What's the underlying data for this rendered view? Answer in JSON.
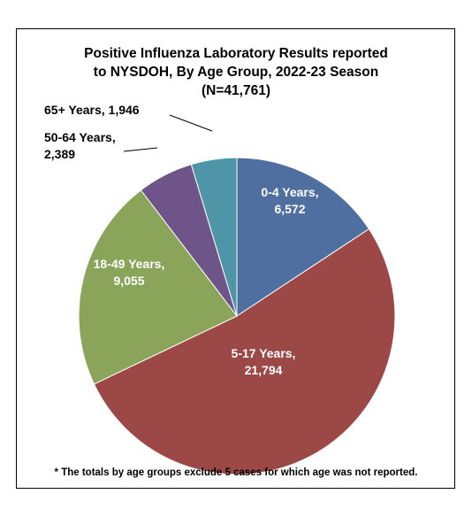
{
  "chart_data": {
    "type": "pie",
    "title_lines": [
      "Positive Influenza Laboratory Results reported",
      "to NYSDOH, By Age Group, 2022-23 Season",
      "(N=41,761)"
    ],
    "slices": [
      {
        "category": "0-4 Years",
        "value": 6572,
        "value_label": "6,572",
        "color": "#4f6fa0",
        "label_color": "#ffffff"
      },
      {
        "category": "5-17 Years",
        "value": 21794,
        "value_label": "21,794",
        "color": "#9b4846",
        "label_color": "#ffffff"
      },
      {
        "category": "18-49 Years",
        "value": 9055,
        "value_label": "9,055",
        "color": "#8aa55a",
        "label_color": "#ffffff"
      },
      {
        "category": "50-64 Years",
        "value": 2389,
        "value_label": "2,389",
        "color": "#6f5489",
        "label_color": "#000000"
      },
      {
        "category": "65+ Years",
        "value": 1946,
        "value_label": "1,946",
        "color": "#4e95a8",
        "label_color": "#000000"
      }
    ],
    "footnote": "* The totals by age groups exclude 5 cases for which age was not reported."
  }
}
